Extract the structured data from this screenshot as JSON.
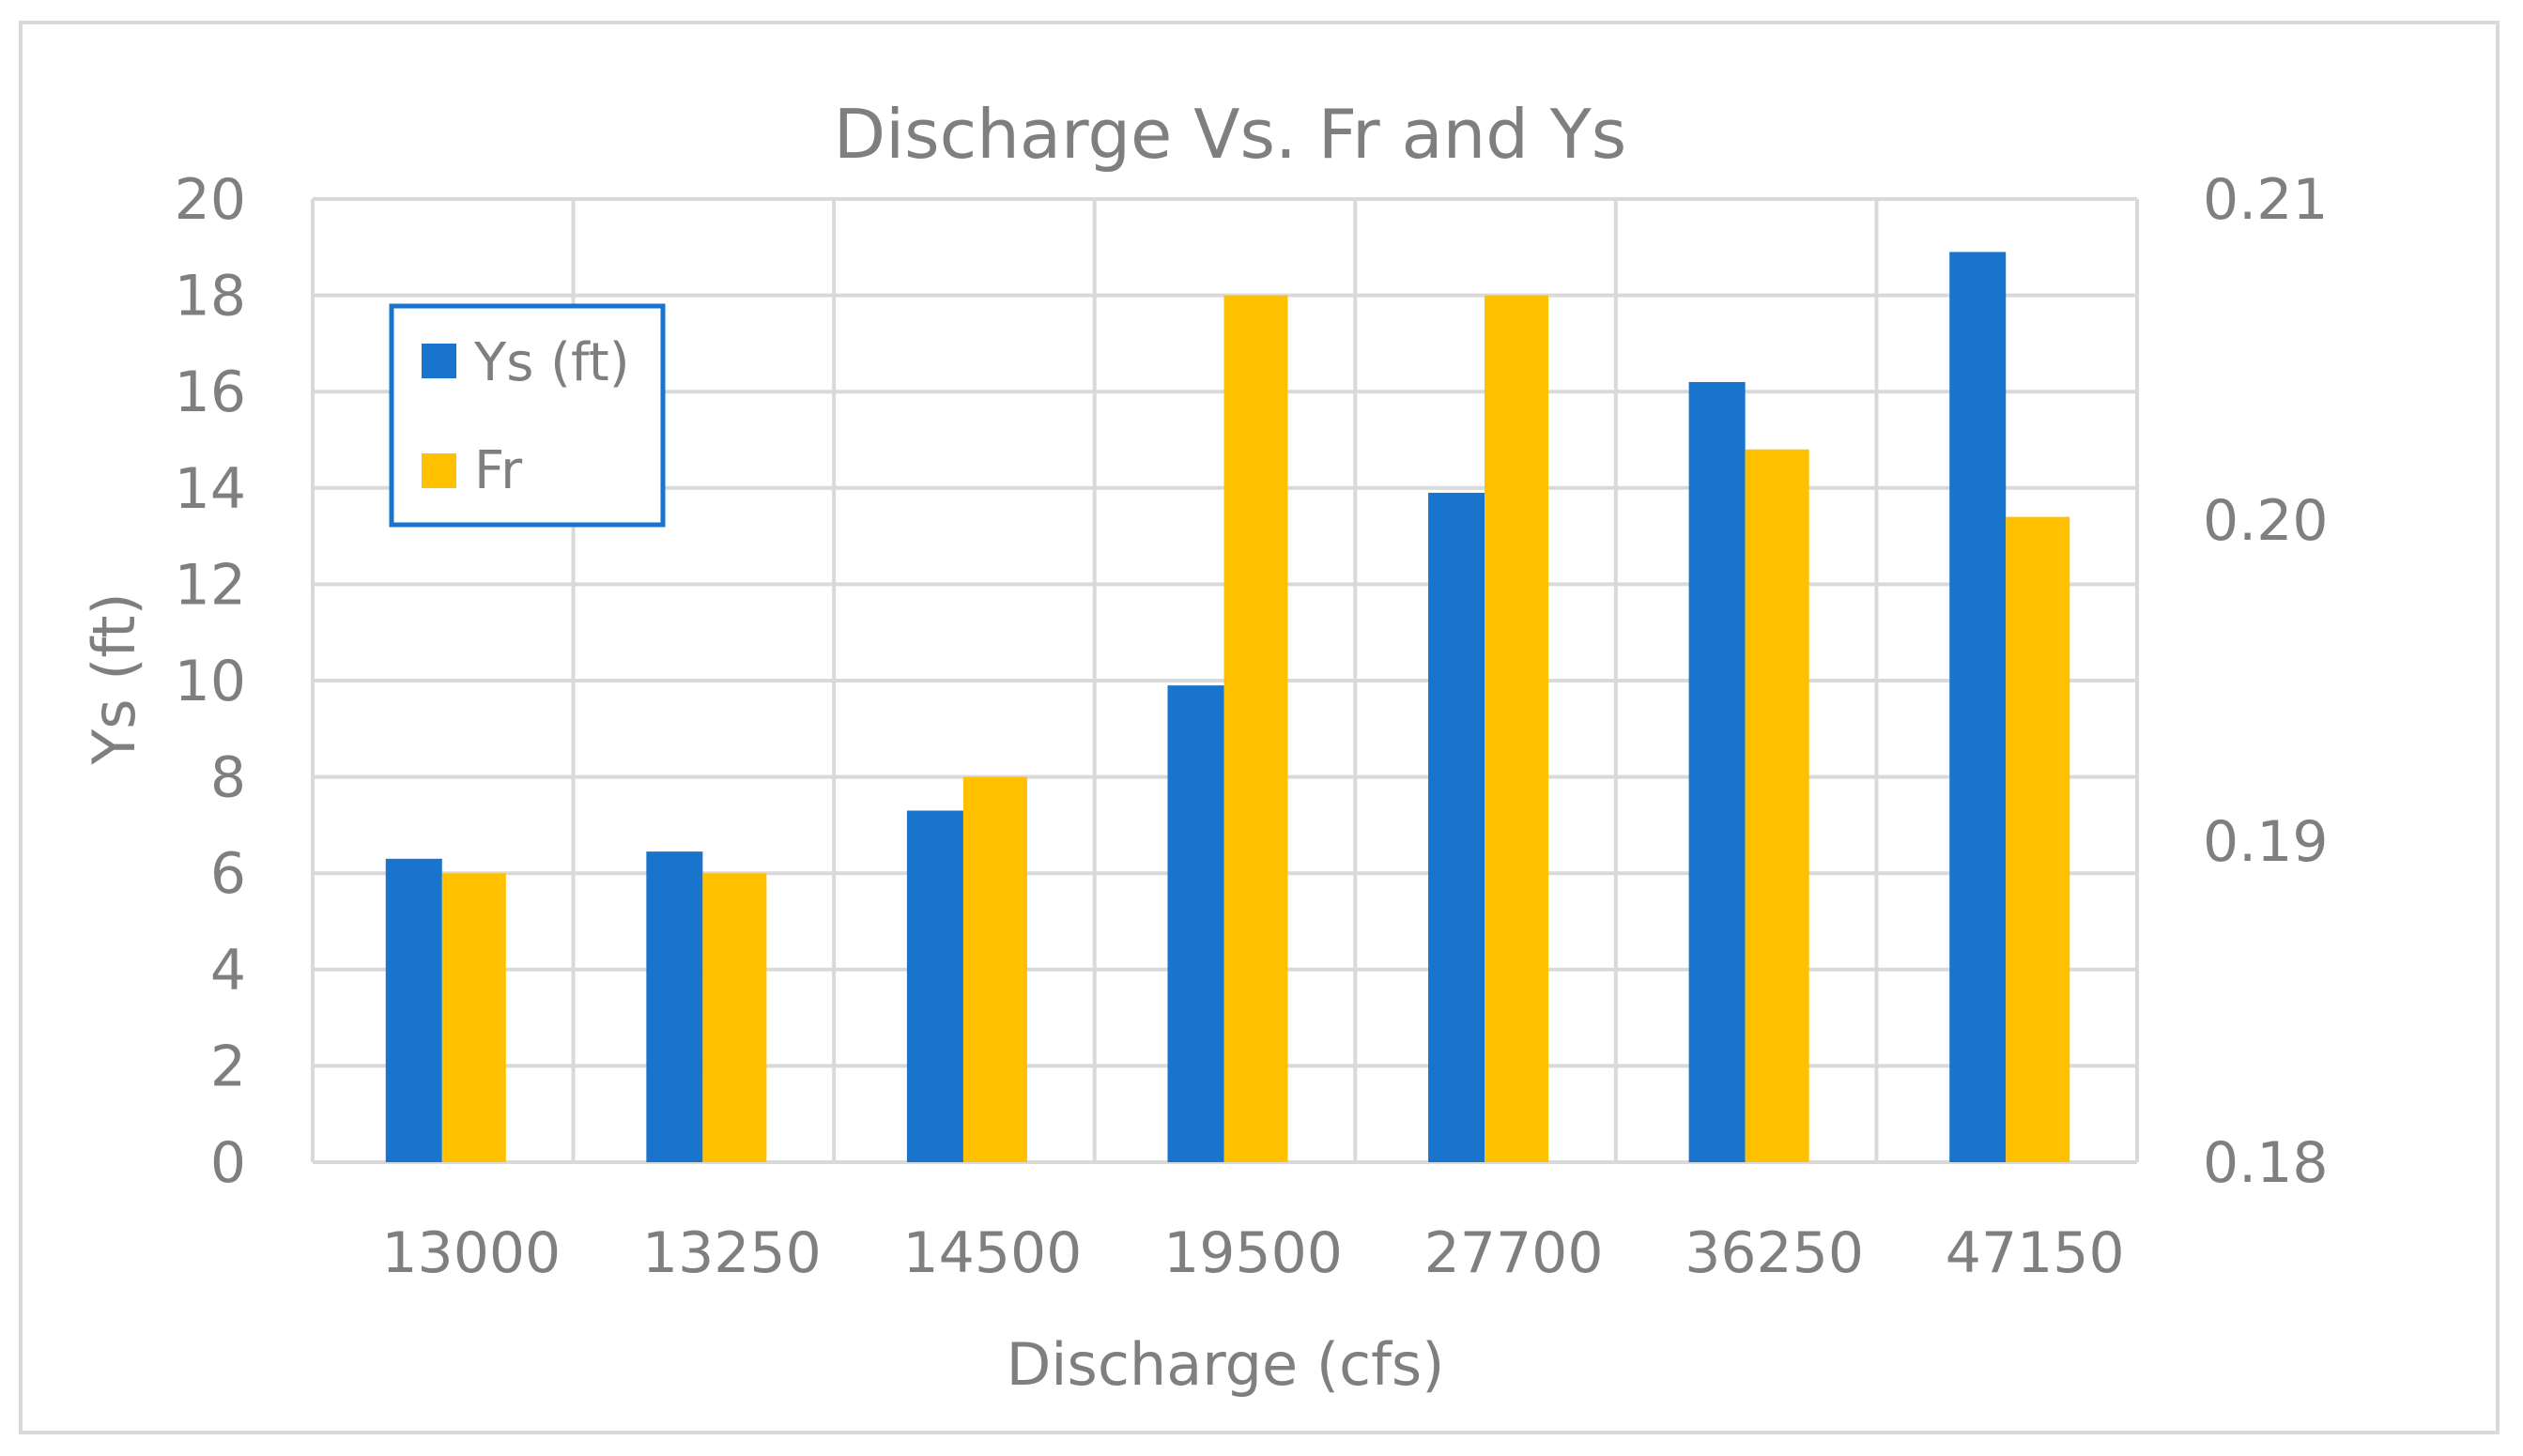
{
  "chart_data": {
    "type": "bar",
    "title": "Discharge Vs. Fr and Ys",
    "xlabel": "Discharge (cfs)",
    "ylabel": "Ys (ft)",
    "y2label": "",
    "categories": [
      "13000",
      "13250",
      "14500",
      "19500",
      "27700",
      "36250",
      "47150"
    ],
    "series": [
      {
        "name": "Ys (ft)",
        "axis": "left",
        "color": "#1874cd",
        "values": [
          6.3,
          6.45,
          7.3,
          9.9,
          13.9,
          16.2,
          18.9
        ]
      },
      {
        "name": "Fr",
        "axis": "right",
        "color": "#ffc000",
        "values": [
          0.189,
          0.189,
          0.192,
          0.207,
          0.207,
          0.2022,
          0.2001
        ]
      }
    ],
    "ylim": [
      0,
      20
    ],
    "y2lim": [
      0.18,
      0.21
    ],
    "yticks": [
      "0",
      "2",
      "4",
      "6",
      "8",
      "10",
      "12",
      "14",
      "16",
      "18",
      "20"
    ],
    "y2ticks": [
      "0.18",
      "0.19",
      "0.20",
      "0.21"
    ],
    "grid": true,
    "legend_position": "top-left"
  }
}
